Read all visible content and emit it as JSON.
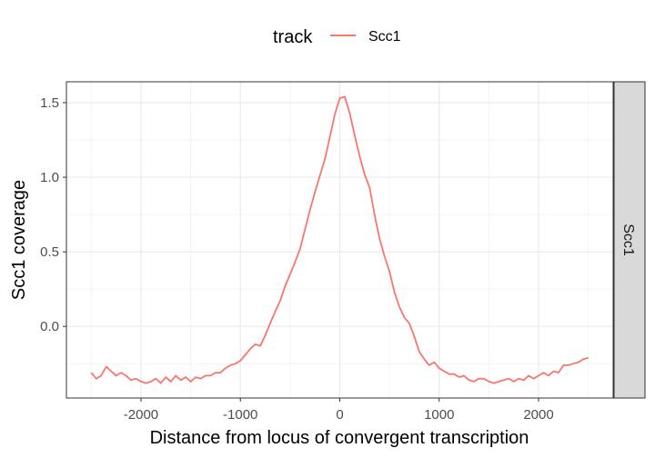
{
  "chart_data": {
    "type": "line",
    "title": "",
    "xlabel": "Distance from locus of convergent transcription",
    "ylabel": "Scc1 coverage",
    "xlim": [
      -2750,
      2750
    ],
    "ylim": [
      -0.48,
      1.64
    ],
    "x_ticks": [
      -2000,
      -1000,
      0,
      1000,
      2000
    ],
    "x_tick_labels": [
      "-2000",
      "-1000",
      "0",
      "1000",
      "2000"
    ],
    "y_ticks": [
      0.0,
      0.5,
      1.0,
      1.5
    ],
    "y_tick_labels": [
      "0.0",
      "0.5",
      "1.0",
      "1.5"
    ],
    "grid": true,
    "legend": {
      "title": "track",
      "position": "top",
      "entries": [
        "Scc1"
      ]
    },
    "facet_label": "Scc1",
    "colors": {
      "Scc1": "#F8766D",
      "strip_bg": "#d9d9d9",
      "grid": "#ebebeb"
    },
    "series": [
      {
        "name": "Scc1",
        "x": [
          -2500,
          -2450,
          -2400,
          -2350,
          -2300,
          -2250,
          -2200,
          -2150,
          -2100,
          -2050,
          -2000,
          -1950,
          -1900,
          -1850,
          -1800,
          -1750,
          -1700,
          -1650,
          -1600,
          -1550,
          -1500,
          -1450,
          -1400,
          -1350,
          -1300,
          -1250,
          -1200,
          -1150,
          -1100,
          -1050,
          -1000,
          -950,
          -900,
          -850,
          -800,
          -750,
          -700,
          -650,
          -600,
          -550,
          -500,
          -450,
          -400,
          -350,
          -300,
          -250,
          -200,
          -150,
          -100,
          -50,
          0,
          50,
          100,
          150,
          200,
          250,
          300,
          350,
          400,
          450,
          500,
          550,
          600,
          650,
          700,
          750,
          800,
          850,
          900,
          950,
          1000,
          1050,
          1100,
          1150,
          1200,
          1250,
          1300,
          1350,
          1400,
          1450,
          1500,
          1550,
          1600,
          1650,
          1700,
          1750,
          1800,
          1850,
          1900,
          1950,
          2000,
          2050,
          2100,
          2150,
          2200,
          2250,
          2300,
          2350,
          2400,
          2450,
          2500
        ],
        "y": [
          -0.31,
          -0.35,
          -0.33,
          -0.27,
          -0.3,
          -0.33,
          -0.31,
          -0.33,
          -0.36,
          -0.35,
          -0.37,
          -0.38,
          -0.37,
          -0.35,
          -0.38,
          -0.34,
          -0.37,
          -0.33,
          -0.36,
          -0.34,
          -0.37,
          -0.34,
          -0.35,
          -0.33,
          -0.33,
          -0.31,
          -0.31,
          -0.28,
          -0.26,
          -0.25,
          -0.23,
          -0.19,
          -0.15,
          -0.12,
          -0.13,
          -0.06,
          0.02,
          0.1,
          0.17,
          0.27,
          0.35,
          0.43,
          0.52,
          0.65,
          0.78,
          0.9,
          1.01,
          1.12,
          1.27,
          1.42,
          1.53,
          1.54,
          1.43,
          1.28,
          1.14,
          1.02,
          0.93,
          0.75,
          0.59,
          0.47,
          0.37,
          0.23,
          0.13,
          0.06,
          0.02,
          -0.07,
          -0.17,
          -0.22,
          -0.26,
          -0.24,
          -0.28,
          -0.3,
          -0.32,
          -0.32,
          -0.34,
          -0.33,
          -0.36,
          -0.37,
          -0.35,
          -0.35,
          -0.37,
          -0.38,
          -0.37,
          -0.36,
          -0.35,
          -0.37,
          -0.35,
          -0.36,
          -0.33,
          -0.35,
          -0.33,
          -0.31,
          -0.33,
          -0.3,
          -0.31,
          -0.26,
          -0.26,
          -0.25,
          -0.24,
          -0.22,
          -0.21
        ]
      }
    ]
  }
}
